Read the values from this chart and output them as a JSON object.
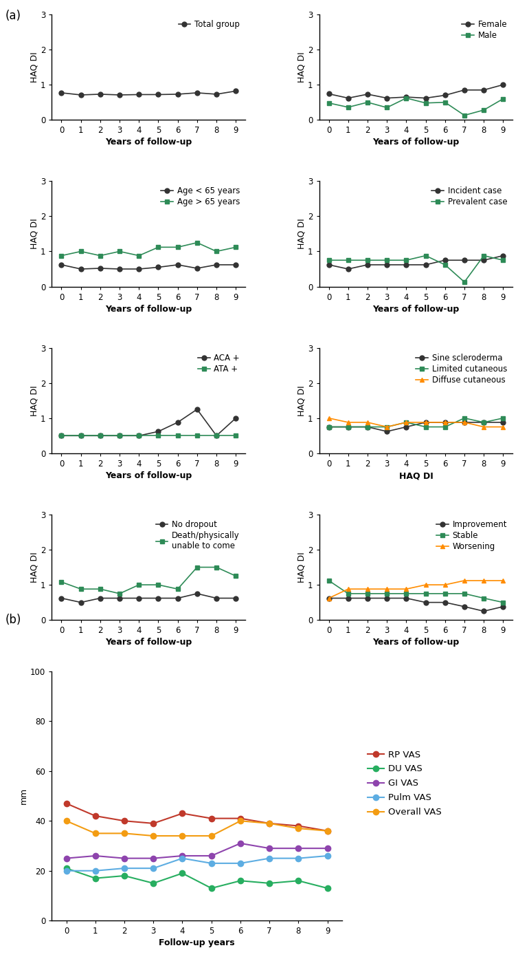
{
  "x": [
    0,
    1,
    2,
    3,
    4,
    5,
    6,
    7,
    8,
    9
  ],
  "panels_a": [
    {
      "series": [
        {
          "label": "Total group",
          "color": "#333333",
          "marker": "o",
          "y": [
            0.77,
            0.71,
            0.73,
            0.71,
            0.72,
            0.72,
            0.73,
            0.77,
            0.73,
            0.82
          ]
        }
      ],
      "ylabel": "HAQ DI",
      "xlabel": "Years of follow-up",
      "ylim": [
        0,
        3
      ],
      "yticks": [
        0,
        1,
        2,
        3
      ],
      "legend_loc": "upper right"
    },
    {
      "series": [
        {
          "label": "Female",
          "color": "#333333",
          "marker": "o",
          "y": [
            0.74,
            0.62,
            0.73,
            0.62,
            0.65,
            0.62,
            0.7,
            0.85,
            0.85,
            1.0
          ]
        },
        {
          "label": "Male",
          "color": "#2e8b57",
          "marker": "s",
          "y": [
            0.48,
            0.36,
            0.5,
            0.35,
            0.62,
            0.48,
            0.5,
            0.13,
            0.28,
            0.6
          ]
        }
      ],
      "ylabel": "HAQ DI",
      "xlabel": "Years of follow-up",
      "ylim": [
        0,
        3
      ],
      "yticks": [
        0,
        1,
        2,
        3
      ],
      "legend_loc": "upper right"
    },
    {
      "series": [
        {
          "label": "Age < 65 years",
          "color": "#333333",
          "marker": "o",
          "y": [
            0.62,
            0.5,
            0.52,
            0.5,
            0.5,
            0.55,
            0.62,
            0.52,
            0.62,
            0.62
          ]
        },
        {
          "label": "Age > 65 years",
          "color": "#2e8b57",
          "marker": "s",
          "y": [
            0.88,
            1.0,
            0.88,
            1.0,
            0.88,
            1.12,
            1.12,
            1.25,
            1.0,
            1.12
          ]
        }
      ],
      "ylabel": "HAQ DI",
      "xlabel": "Years of follow-up",
      "ylim": [
        0,
        3
      ],
      "yticks": [
        0,
        1,
        2,
        3
      ],
      "legend_loc": "upper right"
    },
    {
      "series": [
        {
          "label": "Incident case",
          "color": "#333333",
          "marker": "o",
          "y": [
            0.62,
            0.5,
            0.62,
            0.62,
            0.62,
            0.62,
            0.75,
            0.75,
            0.75,
            0.88
          ]
        },
        {
          "label": "Prevalent case",
          "color": "#2e8b57",
          "marker": "s",
          "y": [
            0.75,
            0.75,
            0.75,
            0.75,
            0.75,
            0.88,
            0.62,
            0.13,
            0.88,
            0.75
          ]
        }
      ],
      "ylabel": "HAQ DI",
      "xlabel": "Years of follow-up",
      "ylim": [
        0,
        3
      ],
      "yticks": [
        0,
        1,
        2,
        3
      ],
      "legend_loc": "upper right"
    },
    {
      "series": [
        {
          "label": "ACA +",
          "color": "#333333",
          "marker": "o",
          "y": [
            0.5,
            0.5,
            0.5,
            0.5,
            0.5,
            0.62,
            0.88,
            1.25,
            0.5,
            1.0
          ]
        },
        {
          "label": "ATA +",
          "color": "#2e8b57",
          "marker": "s",
          "y": [
            0.5,
            0.5,
            0.5,
            0.5,
            0.5,
            0.5,
            0.5,
            0.5,
            0.5,
            0.5
          ]
        }
      ],
      "ylabel": "HAQ DI",
      "xlabel": "Years of follow-up",
      "ylim": [
        0,
        3
      ],
      "yticks": [
        0,
        1,
        2,
        3
      ],
      "legend_loc": "upper right"
    },
    {
      "series": [
        {
          "label": "Sine scleroderma",
          "color": "#333333",
          "marker": "o",
          "y": [
            0.75,
            0.75,
            0.75,
            0.62,
            0.75,
            0.88,
            0.88,
            0.88,
            0.88,
            0.88
          ]
        },
        {
          "label": "Limited cutaneous",
          "color": "#2e8b57",
          "marker": "s",
          "y": [
            0.75,
            0.75,
            0.75,
            0.75,
            0.88,
            0.75,
            0.75,
            1.0,
            0.88,
            1.0
          ]
        },
        {
          "label": "Diffuse cutaneous",
          "color": "#FF8C00",
          "marker": "^",
          "y": [
            1.0,
            0.88,
            0.88,
            0.75,
            0.88,
            0.88,
            0.88,
            0.88,
            0.75,
            0.75
          ]
        }
      ],
      "ylabel": "HAQ DI",
      "xlabel": "HAQ DI",
      "ylim": [
        0,
        3
      ],
      "yticks": [
        0,
        1,
        2,
        3
      ],
      "legend_loc": "upper right"
    },
    {
      "series": [
        {
          "label": "No dropout",
          "color": "#333333",
          "marker": "o",
          "y": [
            0.62,
            0.5,
            0.62,
            0.62,
            0.62,
            0.62,
            0.62,
            0.75,
            0.62,
            0.62
          ]
        },
        {
          "label": "Death/physically\nunable to come",
          "color": "#2e8b57",
          "marker": "s",
          "y": [
            1.08,
            0.88,
            0.88,
            0.75,
            1.0,
            1.0,
            0.88,
            1.5,
            1.5,
            1.25
          ]
        }
      ],
      "ylabel": "HAQ DI",
      "xlabel": "Years of follow-up",
      "ylim": [
        0,
        3
      ],
      "yticks": [
        0,
        1,
        2,
        3
      ],
      "legend_loc": "upper right"
    },
    {
      "series": [
        {
          "label": "Improvement",
          "color": "#333333",
          "marker": "o",
          "y": [
            0.62,
            0.62,
            0.62,
            0.62,
            0.62,
            0.5,
            0.5,
            0.38,
            0.25,
            0.38
          ]
        },
        {
          "label": "Stable",
          "color": "#2e8b57",
          "marker": "s",
          "y": [
            1.12,
            0.75,
            0.75,
            0.75,
            0.75,
            0.75,
            0.75,
            0.75,
            0.62,
            0.5
          ]
        },
        {
          "label": "Worsening",
          "color": "#FF8C00",
          "marker": "^",
          "y": [
            0.62,
            0.88,
            0.88,
            0.88,
            0.88,
            1.0,
            1.0,
            1.12,
            1.12,
            1.12
          ]
        }
      ],
      "ylabel": "HAQ DI",
      "xlabel": "Years of follow-up",
      "ylim": [
        0,
        3
      ],
      "yticks": [
        0,
        1,
        2,
        3
      ],
      "legend_loc": "upper right"
    }
  ],
  "panel_b": {
    "series": [
      {
        "label": "RP VAS",
        "color": "#c0392b",
        "marker": "o",
        "y": [
          47,
          42,
          40,
          39,
          43,
          41,
          41,
          39,
          38,
          36
        ]
      },
      {
        "label": "DU VAS",
        "color": "#27ae60",
        "marker": "o",
        "y": [
          21,
          17,
          18,
          15,
          19,
          13,
          16,
          15,
          16,
          13
        ]
      },
      {
        "label": "GI VAS",
        "color": "#8e44ad",
        "marker": "o",
        "y": [
          25,
          26,
          25,
          25,
          26,
          26,
          31,
          29,
          29,
          29
        ]
      },
      {
        "label": "Pulm VAS",
        "color": "#5dade2",
        "marker": "o",
        "y": [
          20,
          20,
          21,
          21,
          25,
          23,
          23,
          25,
          25,
          26
        ]
      },
      {
        "label": "Overall VAS",
        "color": "#f39c12",
        "marker": "o",
        "y": [
          40,
          35,
          35,
          34,
          34,
          34,
          40,
          39,
          37,
          36
        ]
      }
    ],
    "ylabel": "mm",
    "xlabel": "Follow-up years",
    "ylim": [
      0,
      100
    ],
    "yticks": [
      0,
      20,
      40,
      60,
      80,
      100
    ]
  }
}
